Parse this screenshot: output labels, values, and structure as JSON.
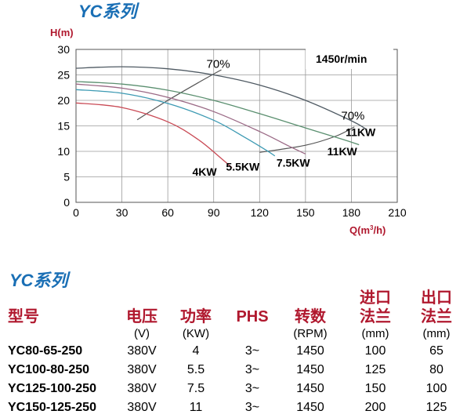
{
  "chart_data": {
    "type": "line",
    "title": "YC系列",
    "ylabel": "H(m)",
    "xlabel_main": "Q(m",
    "xlabel_sup": "3",
    "xlabel_tail": "/h)",
    "xlim": [
      0,
      210
    ],
    "ylim": [
      0,
      30
    ],
    "xticks": [
      "0",
      "30",
      "60",
      "90",
      "120",
      "150",
      "180",
      "210"
    ],
    "yticks": [
      "0",
      "5",
      "10",
      "15",
      "20",
      "25",
      "30"
    ],
    "grid": true,
    "speed_label": "1450r/min",
    "series": [
      {
        "name": "11KW",
        "color": "#4f5a63",
        "x": [
          0,
          30,
          60,
          90,
          120,
          150,
          180,
          190
        ],
        "y": [
          26.3,
          26.6,
          26.2,
          25.0,
          23.0,
          20.0,
          16.0,
          14.3
        ]
      },
      {
        "name": "11KW",
        "color": "#5a8f6f",
        "x": [
          0,
          30,
          60,
          90,
          120,
          150,
          175,
          185
        ],
        "y": [
          23.7,
          23.2,
          22.0,
          20.0,
          17.4,
          14.6,
          12.3,
          11.3
        ]
      },
      {
        "name": "7.5KW",
        "color": "#9b6a86",
        "x": [
          0,
          30,
          60,
          90,
          120,
          140,
          150
        ],
        "y": [
          23.2,
          22.4,
          20.6,
          17.8,
          13.9,
          10.9,
          9.5
        ]
      },
      {
        "name": "5.5KW",
        "color": "#3d9ab3",
        "x": [
          0,
          30,
          60,
          90,
          110,
          125,
          130
        ],
        "y": [
          22.1,
          21.4,
          19.4,
          16.1,
          12.8,
          10.1,
          9.1
        ]
      },
      {
        "name": "4KW",
        "color": "#c94a55",
        "x": [
          0,
          30,
          60,
          80,
          95,
          102
        ],
        "y": [
          19.5,
          18.6,
          15.8,
          12.3,
          8.6,
          6.8
        ]
      }
    ],
    "efficiency_curves": [
      {
        "label": "70%",
        "color": "#555555",
        "x": [
          40,
          60,
          80,
          95
        ],
        "y": [
          16.2,
          20.0,
          23.5,
          26.0
        ]
      },
      {
        "label": "70%",
        "color": "#555555",
        "x": [
          120,
          150,
          170,
          182
        ],
        "y": [
          9.8,
          11.2,
          13.0,
          14.8
        ]
      }
    ],
    "labels": [
      {
        "text": "4KW",
        "x": 84,
        "y": 5.2
      },
      {
        "text": "5.5KW",
        "x": 109,
        "y": 6.2
      },
      {
        "text": "7.5KW",
        "x": 142,
        "y": 7.0
      },
      {
        "text": "11KW",
        "x": 174,
        "y": 9.2
      },
      {
        "text": "11KW",
        "x": 186,
        "y": 13.0
      },
      {
        "text": "70%",
        "x": 93,
        "y": 26.4
      },
      {
        "text": "70%",
        "x": 181,
        "y": 16.2
      }
    ]
  },
  "table": {
    "title": "YC系列",
    "headers": {
      "model": "型号",
      "voltage": "电压",
      "power": "功率",
      "phase": "PHS",
      "speed": "转数",
      "inlet_1": "进口",
      "inlet_2": "法兰",
      "outlet_1": "出口",
      "outlet_2": "法兰"
    },
    "units": {
      "voltage": "(V)",
      "power": "(KW)",
      "speed": "(RPM)",
      "inlet": "(mm)",
      "outlet": "(mm)"
    },
    "rows": [
      {
        "model": "YC80-65-250",
        "voltage": "380V",
        "power": "4",
        "phase": "3~",
        "speed": "1450",
        "inlet": "100",
        "outlet": "65"
      },
      {
        "model": "YC100-80-250",
        "voltage": "380V",
        "power": "5.5",
        "phase": "3~",
        "speed": "1450",
        "inlet": "125",
        "outlet": "80"
      },
      {
        "model": "YC125-100-250",
        "voltage": "380V",
        "power": "7.5",
        "phase": "3~",
        "speed": "1450",
        "inlet": "150",
        "outlet": "100"
      },
      {
        "model": "YC150-125-250",
        "voltage": "380V",
        "power": "11",
        "phase": "3~",
        "speed": "1450",
        "inlet": "200",
        "outlet": "125"
      }
    ]
  }
}
